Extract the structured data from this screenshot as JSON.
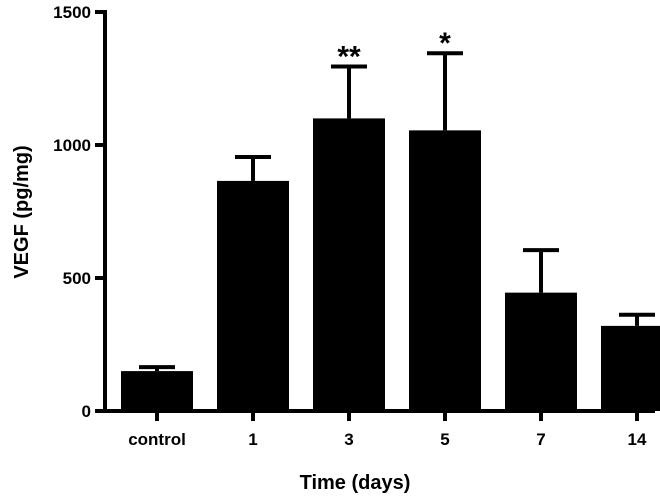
{
  "chart_data": {
    "type": "bar",
    "title": "",
    "xlabel": "Time (days)",
    "ylabel": "VEGF (pg/mg)",
    "categories": [
      "control",
      "1",
      "3",
      "5",
      "7",
      "14"
    ],
    "values": [
      150,
      865,
      1100,
      1055,
      445,
      320
    ],
    "error_upper": [
      165,
      955,
      1295,
      1345,
      605,
      362
    ],
    "significance": [
      "",
      "",
      "**",
      "*",
      "",
      ""
    ],
    "ylim": [
      0,
      1500
    ],
    "yticks": [
      0,
      500,
      1000,
      1500
    ],
    "bar_color": "#000000",
    "grid": false
  }
}
